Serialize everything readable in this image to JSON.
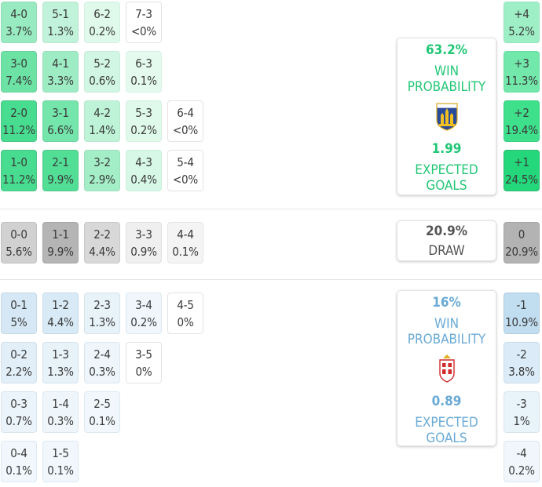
{
  "colors": {
    "home_accent": "#22c776",
    "away_accent": "#6aaad6",
    "draw_text": "#555555"
  },
  "chart_data": {
    "type": "table",
    "home_wins": [
      {
        "score": "4-0",
        "pct": "3.7%"
      },
      {
        "score": "5-1",
        "pct": "1.3%"
      },
      {
        "score": "6-2",
        "pct": "0.2%"
      },
      {
        "score": "7-3",
        "pct": "<0%"
      },
      {
        "score": "3-0",
        "pct": "7.4%"
      },
      {
        "score": "4-1",
        "pct": "3.3%"
      },
      {
        "score": "5-2",
        "pct": "0.6%"
      },
      {
        "score": "6-3",
        "pct": "0.1%"
      },
      {
        "score": "2-0",
        "pct": "11.2%"
      },
      {
        "score": "3-1",
        "pct": "6.6%"
      },
      {
        "score": "4-2",
        "pct": "1.4%"
      },
      {
        "score": "5-3",
        "pct": "0.2%"
      },
      {
        "score": "6-4",
        "pct": "<0%"
      },
      {
        "score": "1-0",
        "pct": "11.2%"
      },
      {
        "score": "2-1",
        "pct": "9.9%"
      },
      {
        "score": "3-2",
        "pct": "2.9%"
      },
      {
        "score": "4-3",
        "pct": "0.4%"
      },
      {
        "score": "5-4",
        "pct": "<0%"
      }
    ],
    "draws": [
      {
        "score": "0-0",
        "pct": "5.6%"
      },
      {
        "score": "1-1",
        "pct": "9.9%"
      },
      {
        "score": "2-2",
        "pct": "4.4%"
      },
      {
        "score": "3-3",
        "pct": "0.9%"
      },
      {
        "score": "4-4",
        "pct": "0.1%"
      }
    ],
    "away_wins": [
      {
        "score": "0-1",
        "pct": "5%"
      },
      {
        "score": "1-2",
        "pct": "4.4%"
      },
      {
        "score": "2-3",
        "pct": "1.3%"
      },
      {
        "score": "3-4",
        "pct": "0.2%"
      },
      {
        "score": "4-5",
        "pct": "0%"
      },
      {
        "score": "0-2",
        "pct": "2.2%"
      },
      {
        "score": "1-3",
        "pct": "1.3%"
      },
      {
        "score": "2-4",
        "pct": "0.3%"
      },
      {
        "score": "3-5",
        "pct": "0%"
      },
      {
        "score": "0-3",
        "pct": "0.7%"
      },
      {
        "score": "1-4",
        "pct": "0.3%"
      },
      {
        "score": "2-5",
        "pct": "0.1%"
      },
      {
        "score": "0-4",
        "pct": "0.1%"
      },
      {
        "score": "1-5",
        "pct": "0.1%"
      }
    ],
    "margins": [
      {
        "label": "+4",
        "pct": "5.2%"
      },
      {
        "label": "+3",
        "pct": "11.3%"
      },
      {
        "label": "+2",
        "pct": "19.4%"
      },
      {
        "label": "+1",
        "pct": "24.5%"
      },
      {
        "label": "0",
        "pct": "20.9%"
      },
      {
        "label": "-1",
        "pct": "10.9%"
      },
      {
        "label": "-2",
        "pct": "3.8%"
      },
      {
        "label": "-3",
        "pct": "1%"
      },
      {
        "label": "-4",
        "pct": "0.2%"
      }
    ]
  },
  "home_summary": {
    "win_pct": "63.2%",
    "win_label_1": "WIN",
    "win_label_2": "PROBABILITY",
    "crest_icon": "kvc-westerlo-crest-icon",
    "crest_text": "KVC WESTERLO",
    "xg": "1.99",
    "xg_label_1": "EXPECTED",
    "xg_label_2": "GOALS"
  },
  "draw_summary": {
    "pct": "20.9%",
    "label": "DRAW"
  },
  "away_summary": {
    "win_pct": "16%",
    "win_label_1": "WIN",
    "win_label_2": "PROBABILITY",
    "crest_icon": "standard-liege-crest-icon",
    "xg": "0.89",
    "xg_label_1": "EXPECTED",
    "xg_label_2": "GOALS"
  }
}
